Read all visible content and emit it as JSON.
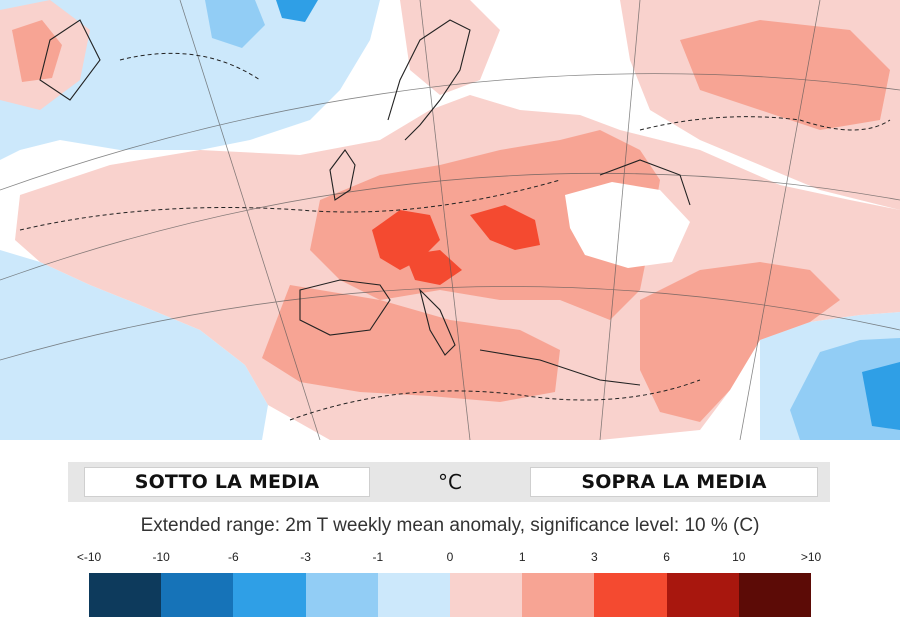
{
  "banner": {
    "below_label": "SOTTO LA MEDIA",
    "unit_label": "°C",
    "above_label": "SOPRA LA MEDIA"
  },
  "caption": "Extended range: 2m T weekly mean anomaly, significance level: 10 % (C)",
  "legend": {
    "ticks": [
      "<-10",
      "-10",
      "-6",
      "-3",
      "-1",
      "0",
      "1",
      "3",
      "6",
      "10",
      ">10"
    ],
    "colors": [
      "#0d3a5c",
      "#1673b8",
      "#2f9fe6",
      "#92cdf5",
      "#cce8fb",
      "#f9d2cd",
      "#f7a494",
      "#f44a30",
      "#a8170e",
      "#5c0b06"
    ]
  },
  "map_colors": {
    "background": "#ffffff",
    "cold_light": "#cce8fb",
    "cold_mid": "#92cdf5",
    "cold_strong": "#2f9fe6",
    "warm_light": "#f9d2cd",
    "warm_mid": "#f7a494",
    "warm_strong": "#f44a30",
    "coastline": "#222222",
    "graticule": "#555555"
  }
}
